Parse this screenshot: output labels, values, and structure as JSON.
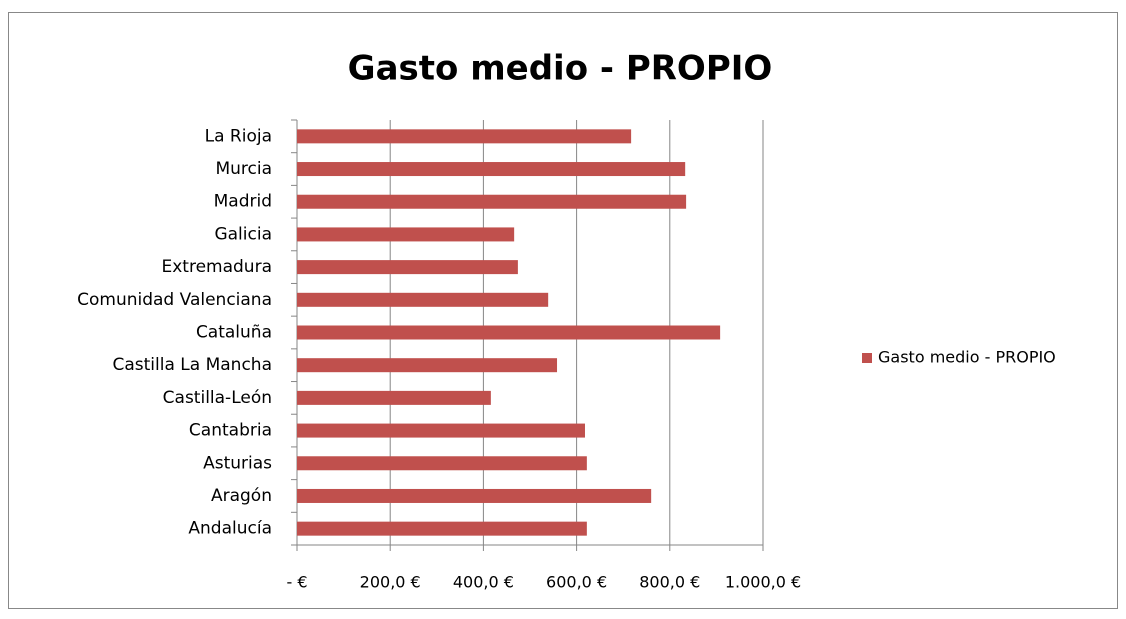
{
  "chart_data": {
    "type": "bar",
    "orientation": "horizontal",
    "title": "Gasto medio - PROPIO",
    "categories": [
      "Andalucía",
      "Aragón",
      "Asturias",
      "Cantabria",
      "Castilla-León",
      "Castilla La Mancha",
      "Cataluña",
      "Comunidad Valenciana",
      "Extremadura",
      "Galicia",
      "Madrid",
      "Murcia",
      "La Rioja"
    ],
    "series": [
      {
        "name": "Gasto medio - PROPIO",
        "color": "#c0504d",
        "values": [
          622,
          760,
          622,
          618,
          416,
          558,
          908,
          539,
          474,
          466,
          835,
          833,
          717
        ]
      }
    ],
    "xlim": [
      0,
      1000
    ],
    "xticks": [
      {
        "value": 0,
        "label": "-  €"
      },
      {
        "value": 200,
        "label": "200,0 €"
      },
      {
        "value": 400,
        "label": "400,0 €"
      },
      {
        "value": 600,
        "label": "600,0 €"
      },
      {
        "value": 800,
        "label": "800,0 €"
      },
      {
        "value": 1000,
        "label": "1.000,0 €"
      }
    ],
    "grid": true,
    "legend": "right"
  }
}
